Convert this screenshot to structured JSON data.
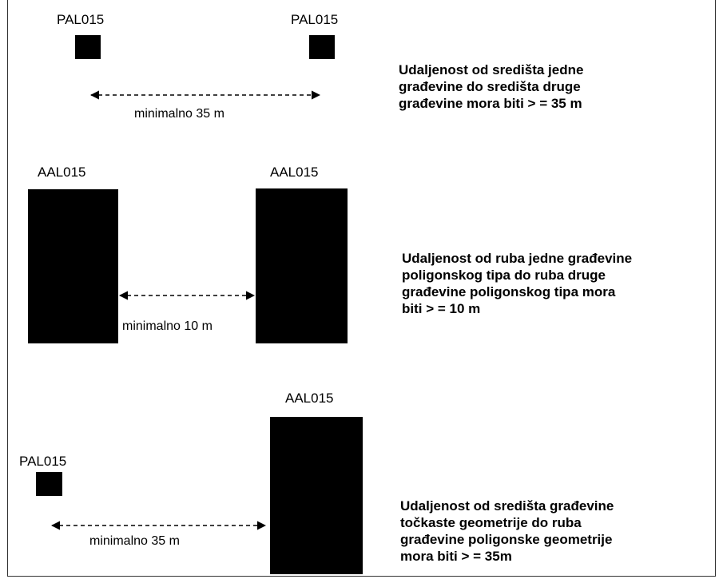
{
  "section1": {
    "left_label": "PAL015",
    "right_label": "PAL015",
    "distance_label": "minimalno 35 m",
    "note_lines": [
      "Udaljenost od središta jedne",
      "građevine do središta druge",
      "građevine mora biti > = 35 m"
    ]
  },
  "section2": {
    "left_label": "AAL015",
    "right_label": "AAL015",
    "distance_label": "minimalno 10 m",
    "note_lines": [
      "Udaljenost od ruba jedne građevine",
      "poligonskog tipa do ruba druge",
      "građevine poligonskog tipa mora",
      "biti > = 10 m"
    ]
  },
  "section3": {
    "left_label": "PAL015",
    "right_label": "AAL015",
    "distance_label": "minimalno 35 m",
    "note_lines": [
      "Udaljenost od središta građevine",
      "točkaste geometrije do ruba",
      "građevine poligonske geometrije",
      "mora biti > = 35m"
    ]
  }
}
